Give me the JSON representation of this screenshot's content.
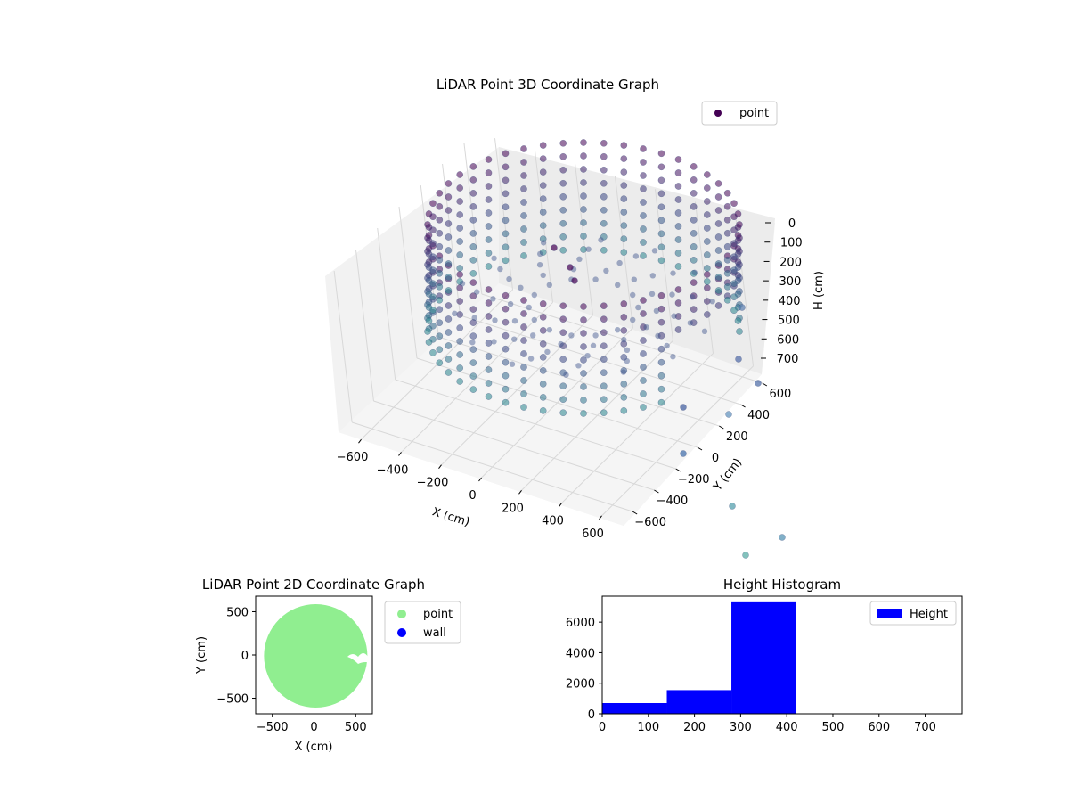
{
  "charts": {
    "scatter3d": {
      "title": "LiDAR Point 3D Coordinate Graph",
      "legend": "point",
      "xlabel": "X (cm)",
      "ylabel": "Y (cm)",
      "zlabel": "H (cm)"
    },
    "scatter2d": {
      "title": "LiDAR Point 2D Coordinate Graph",
      "xlabel": "X (cm)",
      "ylabel": "Y (cm)",
      "legend_point": "point",
      "legend_wall": "wall"
    },
    "histogram": {
      "title": "Height Histogram",
      "legend": "Height"
    }
  },
  "colors": {
    "point_3d": "#440154",
    "point_2d": "#90ee90",
    "wall": "#0000ff",
    "hist": "#0000ff"
  },
  "chart_data": [
    {
      "type": "scatter",
      "projection": "3d",
      "title": "LiDAR Point 3D Coordinate Graph",
      "xlabel": "X (cm)",
      "ylabel": "Y (cm)",
      "zlabel": "H (cm)",
      "xlim": [
        -700,
        700
      ],
      "ylim": [
        -700,
        700
      ],
      "zlim": [
        0,
        750
      ],
      "z_inverted": true,
      "xticks": [
        -600,
        -400,
        -200,
        0,
        200,
        400,
        600
      ],
      "yticks": [
        -600,
        -400,
        -200,
        0,
        200,
        400,
        600
      ],
      "zticks": [
        0,
        100,
        200,
        300,
        400,
        500,
        600,
        700
      ],
      "grid": true,
      "legend": "top-right",
      "series": [
        {
          "name": "point",
          "shape": "cylindrical wall",
          "radius": 620,
          "center": [
            0,
            0
          ],
          "height_range": [
            0,
            700
          ]
        }
      ]
    },
    {
      "type": "scatter",
      "title": "LiDAR Point 2D Coordinate Graph",
      "xlabel": "X (cm)",
      "ylabel": "Y (cm)",
      "xlim": [
        -700,
        700
      ],
      "ylim": [
        -680,
        680
      ],
      "xticks": [
        -500,
        0,
        500
      ],
      "yticks": [
        -500,
        0,
        500
      ],
      "legend": "outside right",
      "series": [
        {
          "name": "point",
          "shape": "filled disc",
          "center": [
            20,
            -10
          ],
          "radius": 620
        },
        {
          "name": "wall",
          "points": []
        }
      ]
    },
    {
      "type": "bar",
      "histogram": true,
      "title": "Height Histogram",
      "xlim": [
        0,
        780
      ],
      "ylim": [
        0,
        7700
      ],
      "xticks": [
        0,
        100,
        200,
        300,
        400,
        500,
        600,
        700
      ],
      "yticks": [
        0,
        2000,
        4000,
        6000
      ],
      "bin_edges": [
        0,
        140,
        280,
        420,
        560,
        700
      ],
      "values": [
        700,
        1550,
        7300,
        0,
        0
      ],
      "legend": "top-right",
      "series": [
        {
          "name": "Height"
        }
      ]
    }
  ]
}
